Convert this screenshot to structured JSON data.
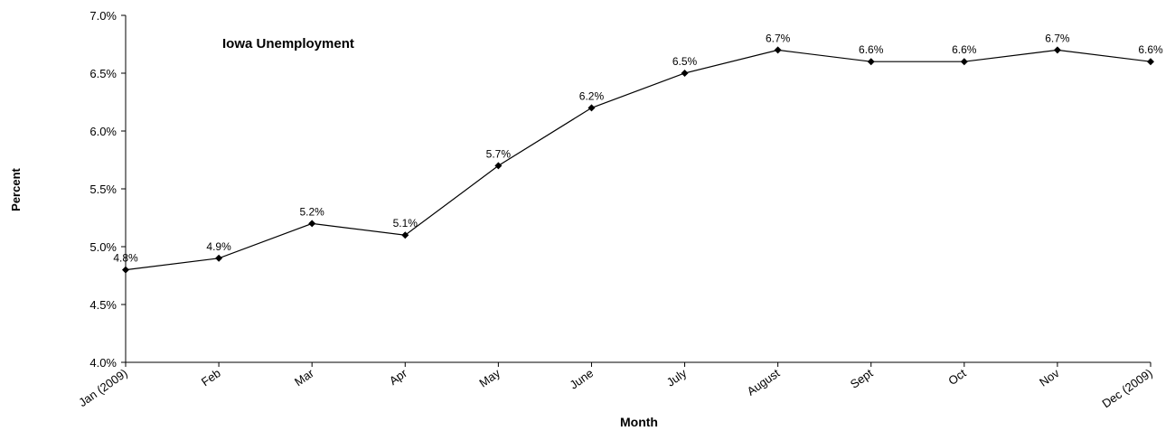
{
  "chart_data": {
    "type": "line",
    "title": "Iowa Unemployment",
    "xlabel": "Month",
    "ylabel": "Percent",
    "categories": [
      "Jan (2009)",
      "Feb",
      "Mar",
      "Apr",
      "May",
      "June",
      "July",
      "August",
      "Sept",
      "Oct",
      "Nov",
      "Dec (2009)"
    ],
    "series": [
      {
        "values": [
          4.8,
          4.9,
          5.2,
          5.1,
          5.7,
          6.2,
          6.5,
          6.7,
          6.6,
          6.6,
          6.7,
          6.6
        ],
        "labels": [
          "4.8%",
          "4.9%",
          "5.2%",
          "5.1%",
          "5.7%",
          "6.2%",
          "6.5%",
          "6.7%",
          "6.6%",
          "6.6%",
          "6.7%",
          "6.6%"
        ],
        "color": "#000000",
        "marker": "diamond"
      }
    ],
    "ylim": [
      4.0,
      7.0
    ],
    "yticks": [
      4.0,
      4.5,
      5.0,
      5.5,
      6.0,
      6.5,
      7.0
    ],
    "ytick_labels": [
      "4.0%",
      "4.5%",
      "5.0%",
      "5.5%",
      "6.0%",
      "6.5%",
      "7.0%"
    ],
    "grid": false,
    "legend": "none"
  }
}
